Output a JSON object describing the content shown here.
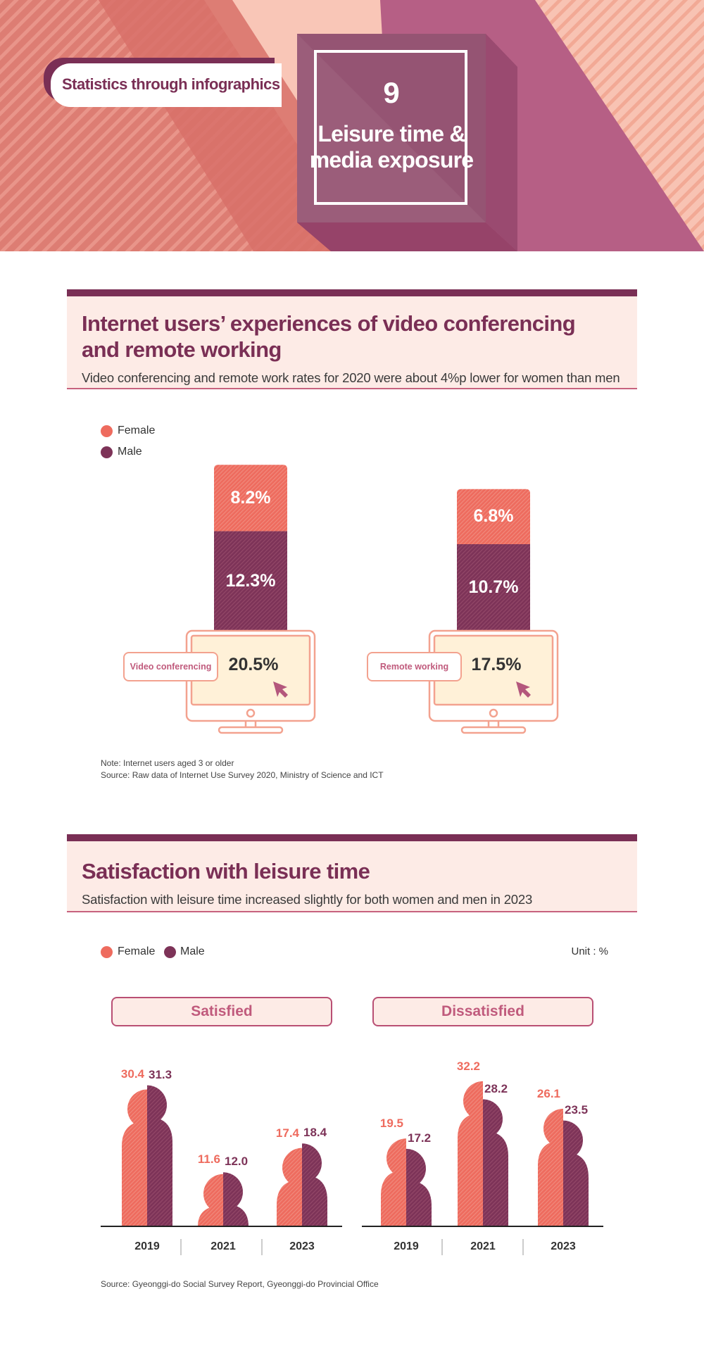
{
  "header": {
    "tag": "Statistics through infographics",
    "number": "9",
    "title_line1": "Leisure time &",
    "title_line2": "media exposure"
  },
  "section1": {
    "title_line1": "Internet users’ experiences of video conferencing",
    "title_line2": "and remote working",
    "subtitle": "Video conferencing and remote work rates for 2020 were about 4%p lower for women than men",
    "legend": {
      "female": "Female",
      "male": "Male"
    },
    "note": "Note: Internet users aged 3 or older",
    "source": "Source: Raw data of Internet Use Survey 2020, Ministry of Science and ICT"
  },
  "section2": {
    "title": "Satisfaction with leisure time",
    "subtitle": "Satisfaction with leisure time increased slightly for both women and men in 2023",
    "legend": {
      "female": "Female",
      "male": "Male"
    },
    "unit": "Unit : %",
    "source": "Source: Gyeonggi-do Social Survey Report, Gyeonggi-do Provincial Office"
  },
  "colors": {
    "female": "#ee6b5e",
    "male": "#7d3358",
    "accent": "#7a2f55",
    "light": "#fdebe6"
  },
  "chart_data": [
    {
      "type": "bar",
      "stacked": true,
      "categories": [
        "Video conferencing",
        "Remote working"
      ],
      "totals": [
        "20.5%",
        "17.5%"
      ],
      "series": [
        {
          "name": "Female",
          "values": [
            8.2,
            6.8
          ],
          "labels": [
            "8.2%",
            "6.8%"
          ]
        },
        {
          "name": "Male",
          "values": [
            12.3,
            10.7
          ],
          "labels": [
            "12.3%",
            "10.7%"
          ]
        }
      ]
    },
    {
      "type": "bar",
      "panel": "Satisfied",
      "categories": [
        "2019",
        "2021",
        "2023"
      ],
      "series": [
        {
          "name": "Female",
          "values": [
            30.4,
            11.6,
            17.4
          ]
        },
        {
          "name": "Male",
          "values": [
            31.3,
            12.0,
            18.4
          ]
        }
      ]
    },
    {
      "type": "bar",
      "panel": "Dissatisfied",
      "categories": [
        "2019",
        "2021",
        "2023"
      ],
      "series": [
        {
          "name": "Female",
          "values": [
            19.5,
            32.2,
            26.1
          ]
        },
        {
          "name": "Male",
          "values": [
            17.2,
            28.2,
            23.5
          ]
        }
      ]
    }
  ]
}
